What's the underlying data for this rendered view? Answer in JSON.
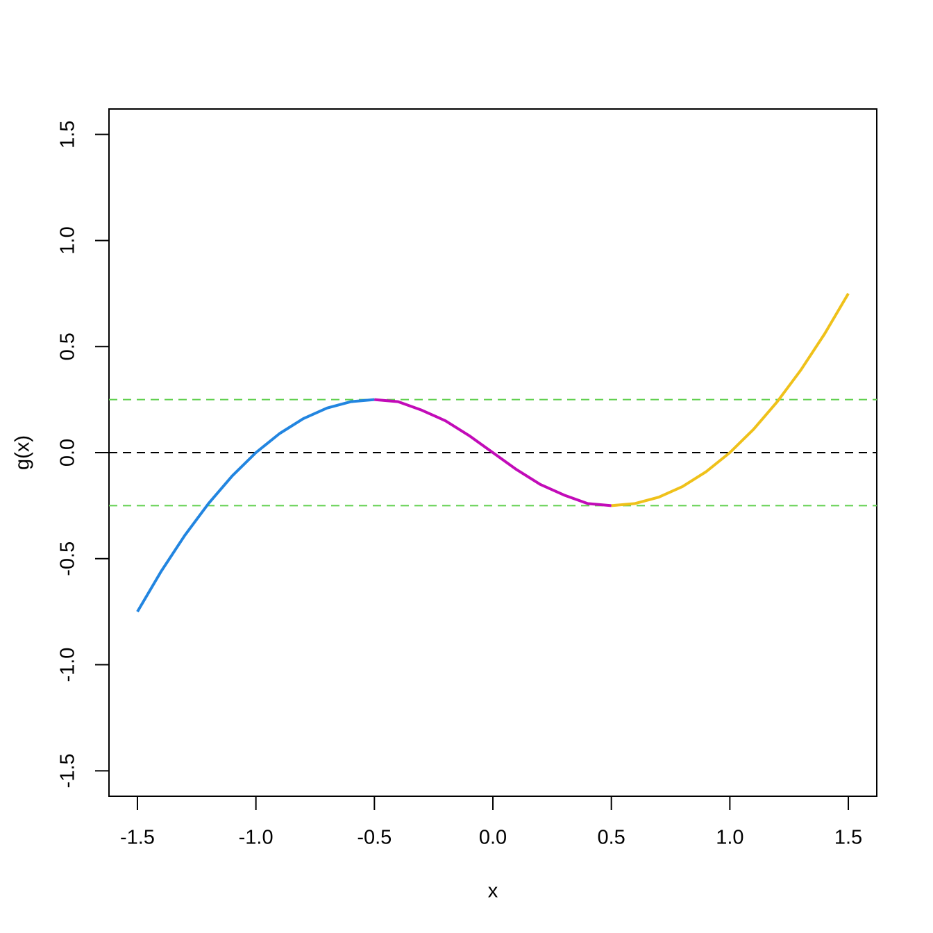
{
  "chart_data": {
    "type": "line",
    "x_label": "x",
    "y_label": "g(x)",
    "xlim": [
      -1.62,
      1.62
    ],
    "ylim": [
      -1.62,
      1.62
    ],
    "xticks": [
      -1.5,
      {
        "value": -1,
        "label": "-1.0"
      },
      -0.5,
      {
        "value": 0,
        "label": "0.0"
      },
      0.5,
      {
        "value": 1,
        "label": "1.0"
      },
      1.5
    ],
    "yticks": [
      -1.5,
      {
        "value": -1,
        "label": "-1.0"
      },
      -0.5,
      {
        "value": 0,
        "label": "0.0"
      },
      0.5,
      {
        "value": 1,
        "label": "1.0"
      },
      1.5
    ],
    "hlines": [
      {
        "value": 0.25,
        "color": "#61d04f",
        "dashed": true
      },
      {
        "value": 0,
        "color": "#000000",
        "dashed": true
      },
      {
        "value": -0.25,
        "color": "#61d04f",
        "dashed": true
      }
    ],
    "series": [
      {
        "color": "#2285e0",
        "x": [
          -1.5,
          -1.4,
          -1.3,
          -1.2,
          -1.1,
          -1.0,
          -0.9,
          -0.8,
          -0.7,
          -0.6,
          -0.5
        ],
        "values": [
          -0.75,
          -0.56,
          -0.39,
          -0.24,
          -0.11,
          0,
          0.09,
          0.16,
          0.21,
          0.24,
          0.25
        ]
      },
      {
        "color": "#c20bb8",
        "x": [
          -0.5,
          -0.4,
          -0.3,
          -0.2,
          -0.1,
          0,
          0.1,
          0.2,
          0.3,
          0.4,
          0.5
        ],
        "values": [
          0.25,
          0.24,
          0.2,
          0.15,
          0.08,
          0,
          -0.08,
          -0.15,
          -0.2,
          -0.24,
          -0.25
        ]
      },
      {
        "color": "#efc11a",
        "x": [
          0.5,
          0.6,
          0.7,
          0.8,
          0.9,
          1.0,
          1.1,
          1.2,
          1.3,
          1.4,
          1.5
        ],
        "values": [
          -0.25,
          -0.24,
          -0.21,
          -0.16,
          -0.09,
          0,
          0.11,
          0.24,
          0.39,
          0.56,
          0.75
        ]
      }
    ]
  }
}
